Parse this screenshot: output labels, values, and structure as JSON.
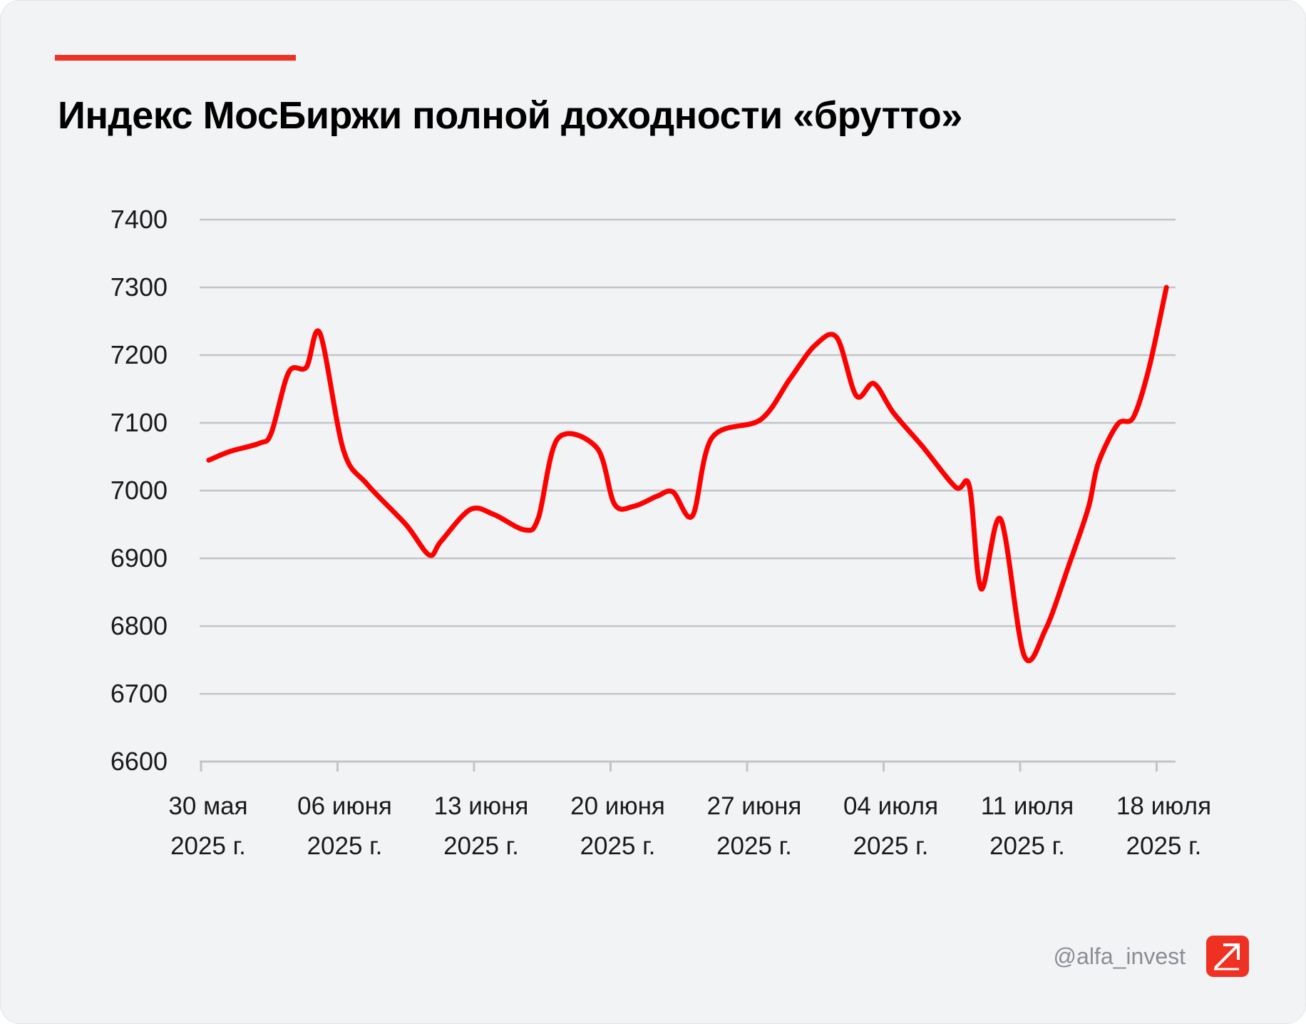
{
  "title": "Индекс МосБиржи полной доходности «брутто»",
  "footer": {
    "handle": "@alfa_invest",
    "logo_icon": "alfa-logo-arrow-icon"
  },
  "colors": {
    "accent": "#ef3124",
    "line": "#ff0000",
    "grid": "#c2c4c8",
    "text": "#1a1a1a"
  },
  "chart_data": {
    "type": "line",
    "title": "Индекс МосБиржи полной доходности «брутто»",
    "xlabel": "",
    "ylabel": "",
    "ylim": [
      6600,
      7400
    ],
    "yticks": [
      "6600",
      "6700",
      "6800",
      "6900",
      "7000",
      "7100",
      "7200",
      "7300",
      "7400"
    ],
    "xticks": [
      {
        "day": 0,
        "line1": "30 мая",
        "line2": "2025 г."
      },
      {
        "day": 7,
        "line1": "06 июня",
        "line2": "2025 г."
      },
      {
        "day": 14,
        "line1": "13 июня",
        "line2": "2025 г."
      },
      {
        "day": 21,
        "line1": "20 июня",
        "line2": "2025 г."
      },
      {
        "day": 28,
        "line1": "27 июня",
        "line2": "2025 г."
      },
      {
        "day": 35,
        "line1": "04 июля",
        "line2": "2025 г."
      },
      {
        "day": 42,
        "line1": "11 июля",
        "line2": "2025 г."
      },
      {
        "day": 49,
        "line1": "18 июля",
        "line2": "2025 г."
      }
    ],
    "grid": true,
    "legend": "none",
    "series": [
      {
        "values": [
          [
            0.4,
            7045
          ],
          [
            1.5,
            7058
          ],
          [
            3.0,
            7070
          ],
          [
            3.6,
            7085
          ],
          [
            4.5,
            7175
          ],
          [
            5.4,
            7182
          ],
          [
            6.1,
            7232
          ],
          [
            7.3,
            7060
          ],
          [
            8.5,
            7010
          ],
          [
            10.5,
            6950
          ],
          [
            11.7,
            6905
          ],
          [
            12.3,
            6925
          ],
          [
            13.8,
            6972
          ],
          [
            15.0,
            6965
          ],
          [
            16.6,
            6942
          ],
          [
            17.3,
            6960
          ],
          [
            18.3,
            7077
          ],
          [
            20.3,
            7063
          ],
          [
            21.2,
            6980
          ],
          [
            22.2,
            6977
          ],
          [
            23.4,
            6992
          ],
          [
            24.2,
            6998
          ],
          [
            25.2,
            6963
          ],
          [
            26.2,
            7078
          ],
          [
            28.7,
            7105
          ],
          [
            30.2,
            7165
          ],
          [
            31.5,
            7215
          ],
          [
            32.6,
            7226
          ],
          [
            33.6,
            7140
          ],
          [
            34.5,
            7158
          ],
          [
            35.5,
            7115
          ],
          [
            37.0,
            7065
          ],
          [
            38.7,
            7005
          ],
          [
            39.4,
            7006
          ],
          [
            40.0,
            6855
          ],
          [
            41.0,
            6958
          ],
          [
            42.2,
            6757
          ],
          [
            43.3,
            6795
          ],
          [
            44.5,
            6890
          ],
          [
            45.5,
            6975
          ],
          [
            46.0,
            7040
          ],
          [
            47.0,
            7098
          ],
          [
            47.8,
            7108
          ],
          [
            48.6,
            7180
          ],
          [
            49.5,
            7300
          ]
        ]
      }
    ]
  }
}
